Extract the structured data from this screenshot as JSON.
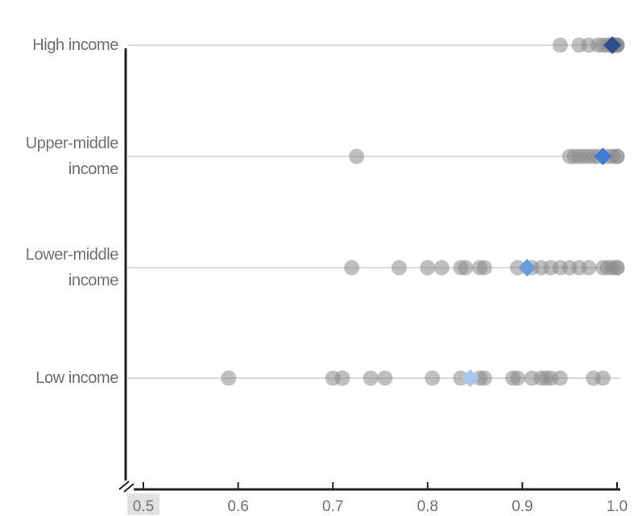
{
  "chart_data": {
    "type": "scatter",
    "title": "",
    "xlabel": "",
    "ylabel": "",
    "xlim": [
      0.5,
      1.0
    ],
    "axis_break": true,
    "grid": false,
    "x_ticks": [
      "0.5",
      "0.6",
      "0.7",
      "0.8",
      "0.9",
      "1.0"
    ],
    "categories": [
      {
        "label_lines": [
          "High income"
        ],
        "points": [
          0.94,
          0.96,
          0.97,
          0.98,
          0.985,
          0.99,
          0.993,
          0.996,
          0.998,
          1.0,
          1.0,
          1.0
        ],
        "median": 0.995,
        "median_color": "#2e4f8f"
      },
      {
        "label_lines": [
          "Upper-middle",
          "income"
        ],
        "points": [
          0.725,
          0.95,
          0.955,
          0.96,
          0.965,
          0.97,
          0.975,
          0.98,
          0.99,
          0.995,
          1.0,
          1.0
        ],
        "median": 0.985,
        "median_color": "#3d7ed3"
      },
      {
        "label_lines": [
          "Lower-middle",
          "income"
        ],
        "points": [
          0.72,
          0.77,
          0.8,
          0.815,
          0.835,
          0.84,
          0.855,
          0.86,
          0.895,
          0.91,
          0.92,
          0.93,
          0.94,
          0.95,
          0.96,
          0.97,
          0.985,
          0.99,
          0.995,
          1.0,
          1.0
        ],
        "median": 0.905,
        "median_color": "#6c9bd8"
      },
      {
        "label_lines": [
          "Low income"
        ],
        "points": [
          0.59,
          0.7,
          0.71,
          0.74,
          0.755,
          0.805,
          0.835,
          0.855,
          0.86,
          0.89,
          0.895,
          0.91,
          0.92,
          0.925,
          0.93,
          0.94,
          0.975,
          0.985
        ],
        "median": 0.845,
        "median_color": "#a8c6ec"
      }
    ]
  }
}
